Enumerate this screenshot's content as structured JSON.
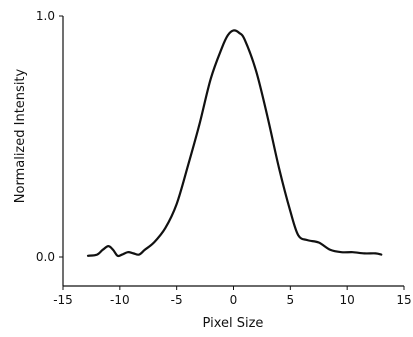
{
  "chart_data": {
    "type": "line",
    "title": "",
    "xlabel": "Pixel Size",
    "ylabel": "Normalized Intensity",
    "xlim": [
      -15,
      15
    ],
    "ylim": [
      0.0,
      1.0
    ],
    "xticks": [
      -15,
      -10,
      -5,
      0,
      5,
      10,
      15
    ],
    "xtick_labels": [
      "-15",
      "-10",
      "-5",
      "0",
      "5",
      "10",
      "15"
    ],
    "yticks": [
      0.0,
      1.0
    ],
    "ytick_labels": [
      "0.0",
      "1.0"
    ],
    "grid": false,
    "legend": "none",
    "line_color": "#111111",
    "series": [
      {
        "x": [
          -12.8,
          -12.0,
          -11.5,
          -11.0,
          -10.6,
          -10.2,
          -9.8,
          -9.3,
          -8.8,
          -8.3,
          -7.8,
          -7.0,
          -6.0,
          -5.0,
          -4.0,
          -3.0,
          -2.0,
          -1.0,
          -0.5,
          0.0,
          0.5,
          1.0,
          2.0,
          3.0,
          4.0,
          5.0,
          5.7,
          6.5,
          7.5,
          8.5,
          9.5,
          10.5,
          11.5,
          12.5,
          13.0
        ],
        "y": [
          0.005,
          0.01,
          0.03,
          0.045,
          0.03,
          0.005,
          0.01,
          0.02,
          0.015,
          0.01,
          0.03,
          0.06,
          0.12,
          0.22,
          0.38,
          0.55,
          0.74,
          0.87,
          0.92,
          0.94,
          0.93,
          0.9,
          0.77,
          0.58,
          0.37,
          0.19,
          0.09,
          0.07,
          0.06,
          0.03,
          0.02,
          0.02,
          0.015,
          0.015,
          0.01
        ]
      }
    ]
  }
}
